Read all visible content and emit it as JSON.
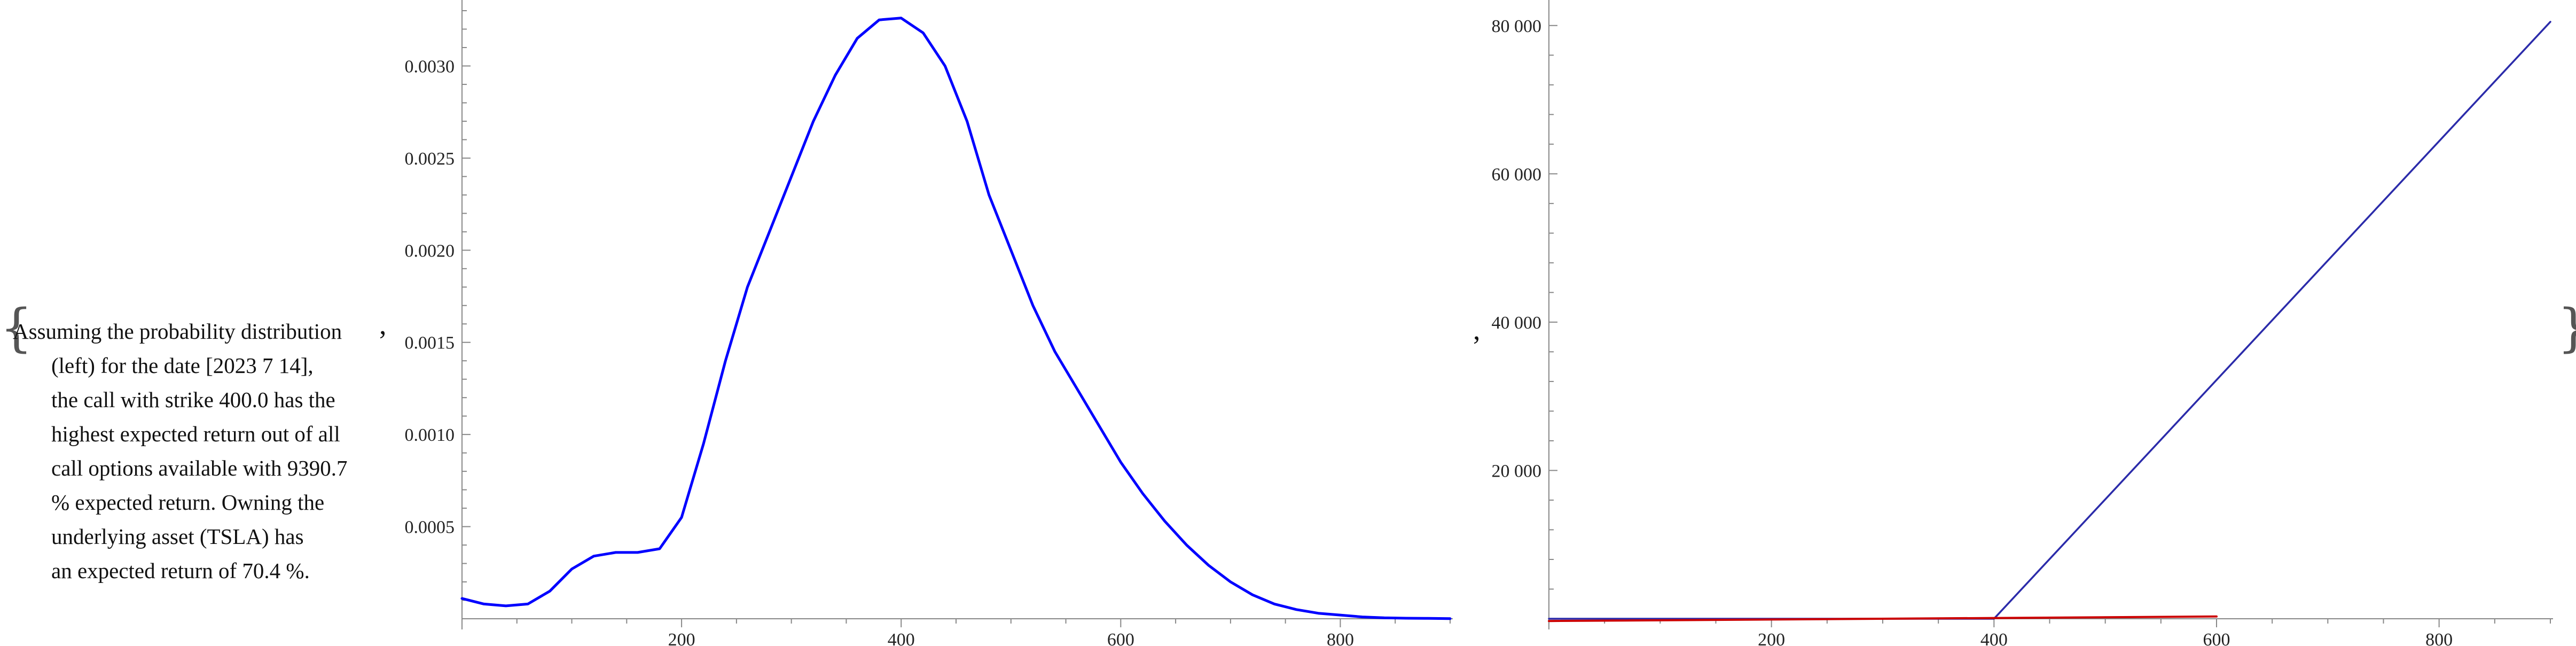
{
  "text": {
    "open_brace": "{",
    "close_brace": "}",
    "separator": ",",
    "lines": [
      "Assuming the probability distribution",
      "(left) for the date [2023 7 14],",
      "the call with strike 400.0 has the",
      "highest expected return out of all",
      "call options available with 9390.7",
      "% expected return. Owning the",
      "underlying asset (TSLA) has",
      "an expected return of 70.4 %."
    ]
  },
  "colors": {
    "density": "#0000ff",
    "call_payoff": "#2b2baa",
    "asset": "#cc0000",
    "axis": "#888888"
  },
  "chart_data": [
    {
      "type": "line",
      "title": "",
      "xlabel": "",
      "ylabel": "",
      "xlim": [
        0,
        900
      ],
      "ylim": [
        0,
        0.0033
      ],
      "x_ticks": [
        200,
        400,
        600,
        800
      ],
      "x_tick_labels": [
        "200",
        "400",
        "600",
        "800"
      ],
      "y_ticks": [
        0.0005,
        0.001,
        0.0015,
        0.002,
        0.0025,
        0.003
      ],
      "y_tick_labels": [
        "0.0005",
        "0.0010",
        "0.0015",
        "0.0020",
        "0.0025",
        "0.0030"
      ],
      "grid": false,
      "series": [
        {
          "x": [
            0,
            20,
            40,
            60,
            80,
            100,
            120,
            140,
            160,
            180,
            200,
            220,
            240,
            260,
            280,
            300,
            320,
            340,
            360,
            380,
            400,
            420,
            440,
            460,
            480,
            500,
            520,
            540,
            560,
            580,
            600,
            620,
            640,
            660,
            680,
            700,
            720,
            740,
            760,
            780,
            800,
            820,
            840,
            860,
            880,
            900
          ],
          "y": [
            0.00011,
            8e-05,
            7e-05,
            8e-05,
            0.00015,
            0.00027,
            0.00034,
            0.00036,
            0.00036,
            0.00038,
            0.00055,
            0.00095,
            0.0014,
            0.0018,
            0.0021,
            0.0024,
            0.0027,
            0.00295,
            0.00315,
            0.00325,
            0.00326,
            0.00318,
            0.003,
            0.0027,
            0.0023,
            0.002,
            0.0017,
            0.00145,
            0.00125,
            0.00105,
            0.00085,
            0.00068,
            0.00053,
            0.0004,
            0.00029,
            0.0002,
            0.00013,
            8e-05,
            5e-05,
            3e-05,
            2e-05,
            1e-05,
            5e-06,
            3e-06,
            2e-06,
            1e-06
          ]
        }
      ]
    },
    {
      "type": "line",
      "title": "",
      "xlabel": "",
      "ylabel": "",
      "xlim": [
        0,
        900
      ],
      "ylim": [
        0,
        82000
      ],
      "x_ticks": [
        200,
        400,
        600,
        800
      ],
      "x_tick_labels": [
        "200",
        "400",
        "600",
        "800"
      ],
      "y_ticks": [
        20000,
        40000,
        60000,
        80000
      ],
      "y_tick_labels": [
        "20 000",
        "40 000",
        "60 000",
        "80 000"
      ],
      "grid": false,
      "series": [
        {
          "x": [
            0,
            400,
            900
          ],
          "y": [
            0,
            0,
            80500
          ]
        },
        {
          "x": [
            0,
            600
          ],
          "y": [
            -300,
            300
          ]
        }
      ]
    }
  ]
}
